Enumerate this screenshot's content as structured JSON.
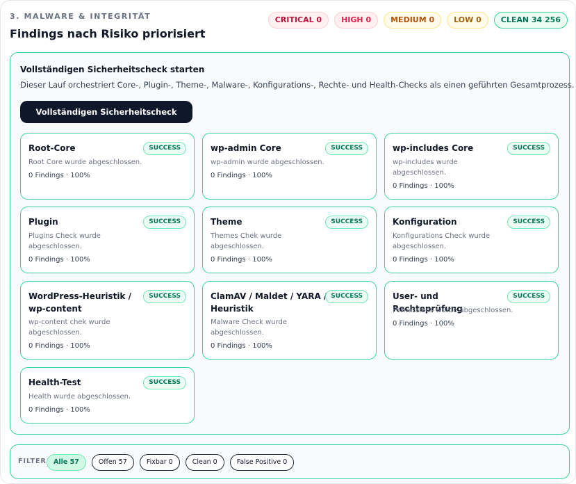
{
  "section": {
    "eyebrow": "3. MALWARE & INTEGRITÄT",
    "title": "Findings nach Risiko priorisiert"
  },
  "risk_badges": [
    {
      "label": "CRITICAL 0",
      "color": "#be123c"
    },
    {
      "label": "HIGH 0",
      "color": "#e11d48"
    },
    {
      "label": "MEDIUM 0",
      "color": "#b45309"
    },
    {
      "label": "LOW 0",
      "color": "#a16207"
    },
    {
      "label": "CLEAN 34 256",
      "color": "#047857"
    }
  ],
  "full_check": {
    "title": "Vollständigen Sicherheitscheck starten",
    "description": "Dieser Lauf orchestriert Core-, Plugin-, Theme-, Malware-, Konfigurations-, Rechte- und Health-Checks als einen geführten Gesamtprozess.",
    "button_label": "Vollständigen Sicherheitscheck starten"
  },
  "checks": [
    {
      "title": "Root-Core",
      "status": "SUCCESS",
      "message": "Root Core wurde abgeschlossen.",
      "meta": "0 Findings · 100%"
    },
    {
      "title": "wp-admin Core",
      "status": "SUCCESS",
      "message": "wp-admin wurde abgeschlossen.",
      "meta": "0 Findings · 100%"
    },
    {
      "title": "wp-includes Core",
      "status": "SUCCESS",
      "message": "wp-includes wurde abgeschlossen.",
      "meta": "0 Findings · 100%"
    },
    {
      "title": "Plugin",
      "status": "SUCCESS",
      "message": "Plugins Check wurde abgeschlossen.",
      "meta": "0 Findings · 100%"
    },
    {
      "title": "Theme",
      "status": "SUCCESS",
      "message": "Themes Chek wurde abgeschlossen.",
      "meta": "0 Findings · 100%"
    },
    {
      "title": "Konfiguration",
      "status": "SUCCESS",
      "message": "Konfigurations Check wurde abgeschlossen.",
      "meta": "0 Findings · 100%"
    },
    {
      "title": "WordPress-Heuristik / wp-content",
      "status": "SUCCESS",
      "message": "wp-content chek wurde abgeschlossen.",
      "meta": "0 Findings · 100%"
    },
    {
      "title": "ClamAV / Maldet / YARA / Heuristik",
      "status": "SUCCESS",
      "message": "Malware Check wurde abgeschlossen.",
      "meta": "0 Findings · 100%"
    },
    {
      "title": "User- und Rechteprüfung",
      "status": "SUCCESS",
      "message": "Permissions wurde abgeschlossen.",
      "meta": "0 Findings · 100%"
    },
    {
      "title": "Health-Test",
      "status": "SUCCESS",
      "message": "Health wurde abgeschlossen.",
      "meta": "0 Findings · 100%"
    }
  ],
  "filter": {
    "label": "FILTER",
    "chips": [
      {
        "label": "Alle 57",
        "active": true
      },
      {
        "label": "Offen 57",
        "active": false
      },
      {
        "label": "Fixbar 0",
        "active": false
      },
      {
        "label": "Clean 0",
        "active": false
      },
      {
        "label": "False Positive 0",
        "active": false
      }
    ]
  }
}
